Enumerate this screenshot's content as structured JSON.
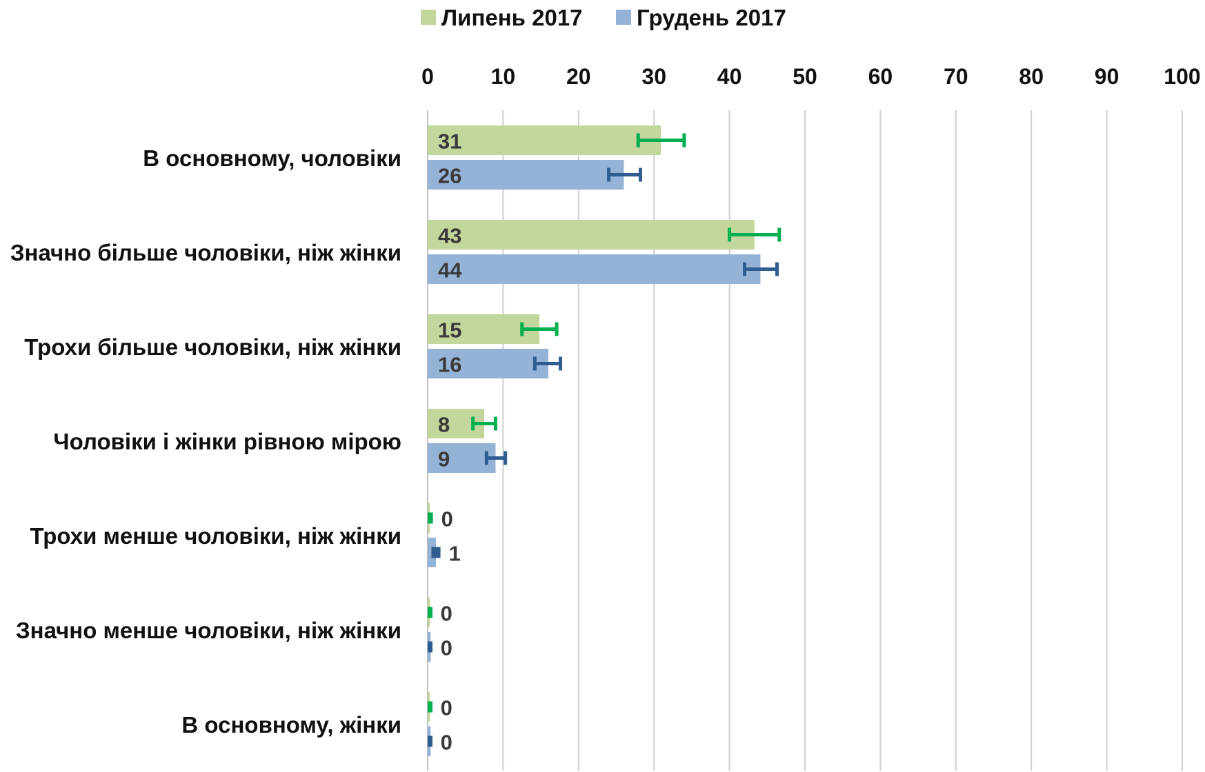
{
  "chart_data": {
    "type": "bar",
    "orientation": "horizontal",
    "categories": [
      "В основному, чоловіки",
      "Значно більше чоловіки, ніж жінки",
      "Трохи більше чоловіки, ніж жінки",
      "Чоловіки і жінки рівною мірою",
      "Трохи менше чоловіки, ніж жінки",
      "Значно менше чоловіки, ніж жінки",
      "В основному, жінки"
    ],
    "series": [
      {
        "name": "Липень 2017",
        "color": "#c3d69b",
        "error_color": "#00b050",
        "values": [
          31,
          43,
          15,
          8,
          0,
          0,
          0
        ],
        "plotted": [
          30.9,
          43.3,
          14.8,
          7.5,
          0.3,
          0.3,
          0.3
        ],
        "error_low": [
          27.9,
          40.0,
          12.5,
          6.0,
          0.0,
          0.0,
          0.0
        ],
        "error_high": [
          34.0,
          46.6,
          17.1,
          9.0,
          0.7,
          0.6,
          0.6
        ]
      },
      {
        "name": "Грудень 2017",
        "color": "#95b3d7",
        "error_color": "#2f5d8f",
        "values": [
          26,
          44,
          16,
          9,
          1,
          0,
          0
        ],
        "plotted": [
          26.0,
          44.1,
          16.0,
          9.0,
          1.1,
          0.4,
          0.4
        ],
        "error_low": [
          24.0,
          42.0,
          14.2,
          7.8,
          0.5,
          0.0,
          0.0
        ],
        "error_high": [
          28.2,
          46.3,
          17.6,
          10.3,
          1.7,
          0.6,
          0.6
        ]
      }
    ],
    "xlim": [
      0,
      100
    ],
    "xticks": [
      "0",
      "10",
      "20",
      "30",
      "40",
      "50",
      "60",
      "70",
      "80",
      "90",
      "100"
    ],
    "x_axis_position": "top",
    "grid": true,
    "legend_position": "top",
    "title": "",
    "xlabel": "",
    "ylabel": ""
  }
}
